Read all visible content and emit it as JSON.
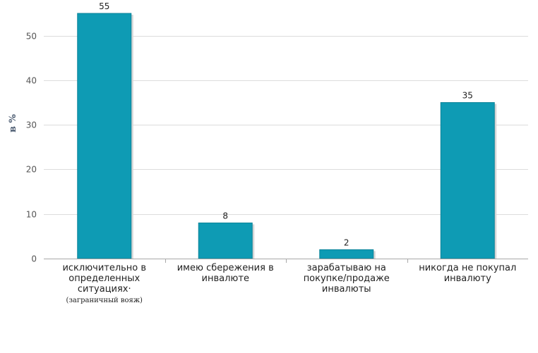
{
  "chart_data": {
    "type": "bar",
    "title": "",
    "xlabel": "",
    "ylabel": "в %",
    "ylim": [
      0,
      58
    ],
    "yticks": [
      0,
      10,
      20,
      30,
      40,
      50
    ],
    "grid": true,
    "legend": "none",
    "colors": {
      "bar": "#0e9bb4",
      "bar_edge": "#0b8399",
      "grid": "#dcdcdc",
      "axis": "#a8a8a8"
    },
    "categories": [
      {
        "lines": [
          "исключительно в",
          "определенных",
          "ситуациях·"
        ],
        "note": "(заграничный вояж)"
      },
      {
        "lines": [
          "имею сбережения в",
          "инвалюте"
        ],
        "note": ""
      },
      {
        "lines": [
          "зарабатываю на",
          "покупке/продаже",
          "инвалюты"
        ],
        "note": ""
      },
      {
        "lines": [
          "никогда не покупал",
          "инвалюту"
        ],
        "note": ""
      }
    ],
    "values": [
      55,
      8,
      2,
      35
    ]
  }
}
